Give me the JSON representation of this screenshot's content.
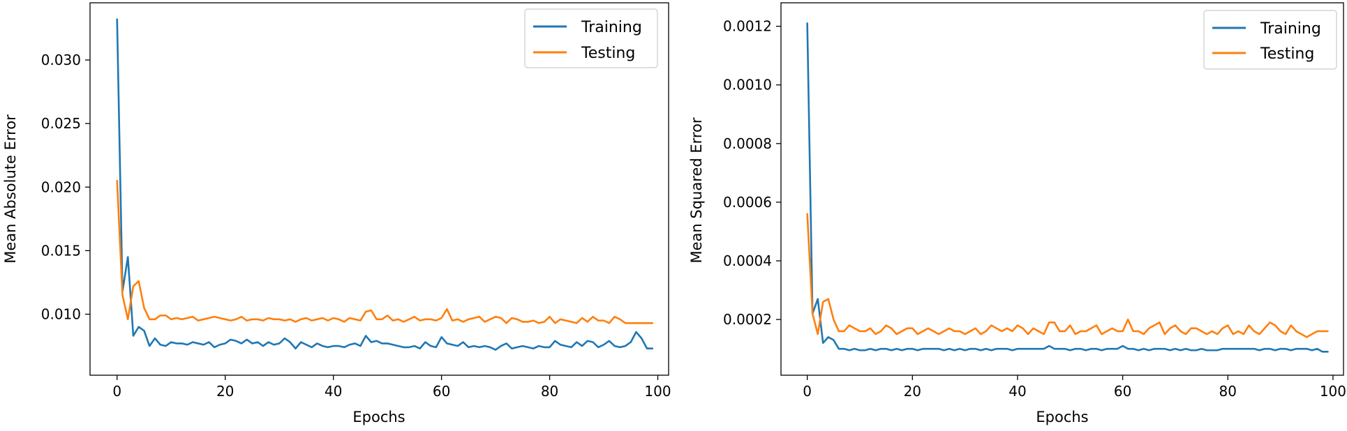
{
  "colors": {
    "training": "#1f77b4",
    "testing": "#ff7f0e"
  },
  "chart_data": [
    {
      "type": "line",
      "title": "",
      "xlabel": "Epochs",
      "ylabel": "Mean Absolute Error",
      "xlim": [
        -5,
        102
      ],
      "ylim": [
        0.0052,
        0.0345
      ],
      "xticks": [
        0,
        20,
        40,
        60,
        80,
        100
      ],
      "xtick_labels": [
        "0",
        "20",
        "40",
        "60",
        "80",
        "100"
      ],
      "yticks": [
        0.01,
        0.015,
        0.02,
        0.025,
        0.03
      ],
      "ytick_labels": [
        "0.010",
        "0.015",
        "0.020",
        "0.025",
        "0.030"
      ],
      "legend": {
        "position": "top-right",
        "entries": [
          "Training",
          "Testing"
        ]
      },
      "grid": false,
      "x": [
        0,
        1,
        2,
        3,
        4,
        5,
        6,
        7,
        8,
        9,
        10,
        11,
        12,
        13,
        14,
        15,
        16,
        17,
        18,
        19,
        20,
        21,
        22,
        23,
        24,
        25,
        26,
        27,
        28,
        29,
        30,
        31,
        32,
        33,
        34,
        35,
        36,
        37,
        38,
        39,
        40,
        41,
        42,
        43,
        44,
        45,
        46,
        47,
        48,
        49,
        50,
        51,
        52,
        53,
        54,
        55,
        56,
        57,
        58,
        59,
        60,
        61,
        62,
        63,
        64,
        65,
        66,
        67,
        68,
        69,
        70,
        71,
        72,
        73,
        74,
        75,
        76,
        77,
        78,
        79,
        80,
        81,
        82,
        83,
        84,
        85,
        86,
        87,
        88,
        89,
        90,
        91,
        92,
        93,
        94,
        95,
        96,
        97,
        98,
        99
      ],
      "series": [
        {
          "name": "Training",
          "values": [
            0.0332,
            0.0118,
            0.0145,
            0.0083,
            0.009,
            0.0087,
            0.0075,
            0.0081,
            0.0076,
            0.0075,
            0.0078,
            0.0077,
            0.0077,
            0.0076,
            0.0078,
            0.0077,
            0.0076,
            0.0078,
            0.0074,
            0.0076,
            0.0077,
            0.008,
            0.0079,
            0.0077,
            0.008,
            0.0077,
            0.0078,
            0.0075,
            0.0078,
            0.0076,
            0.0077,
            0.0081,
            0.0078,
            0.0073,
            0.0078,
            0.0076,
            0.0074,
            0.0077,
            0.0075,
            0.0074,
            0.0075,
            0.0075,
            0.0074,
            0.0076,
            0.0077,
            0.0075,
            0.0083,
            0.0078,
            0.0079,
            0.0077,
            0.0077,
            0.0076,
            0.0075,
            0.0074,
            0.0074,
            0.0075,
            0.0073,
            0.0078,
            0.0075,
            0.0074,
            0.0082,
            0.0077,
            0.0076,
            0.0075,
            0.0078,
            0.0074,
            0.0075,
            0.0074,
            0.0075,
            0.0074,
            0.0072,
            0.0075,
            0.0077,
            0.0073,
            0.0074,
            0.0075,
            0.0074,
            0.0073,
            0.0075,
            0.0074,
            0.0074,
            0.0079,
            0.0076,
            0.0075,
            0.0074,
            0.0078,
            0.0075,
            0.0079,
            0.0078,
            0.0074,
            0.0076,
            0.0079,
            0.0075,
            0.0074,
            0.0075,
            0.0078,
            0.0086,
            0.0081,
            0.0073,
            0.0073
          ]
        },
        {
          "name": "Testing",
          "values": [
            0.0205,
            0.0115,
            0.0096,
            0.0122,
            0.0126,
            0.0105,
            0.0096,
            0.0096,
            0.0099,
            0.0099,
            0.0096,
            0.0097,
            0.0096,
            0.0097,
            0.0098,
            0.0095,
            0.0096,
            0.0097,
            0.0098,
            0.0097,
            0.0096,
            0.0095,
            0.0096,
            0.0098,
            0.0095,
            0.0096,
            0.0096,
            0.0095,
            0.0097,
            0.0096,
            0.0096,
            0.0095,
            0.0096,
            0.0094,
            0.0096,
            0.0097,
            0.0095,
            0.0096,
            0.0097,
            0.0095,
            0.0097,
            0.0096,
            0.0094,
            0.0097,
            0.0096,
            0.0095,
            0.0102,
            0.0103,
            0.0096,
            0.0096,
            0.0099,
            0.0095,
            0.0096,
            0.0094,
            0.0096,
            0.0098,
            0.0095,
            0.0096,
            0.0096,
            0.0095,
            0.0097,
            0.0104,
            0.0095,
            0.0096,
            0.0094,
            0.0096,
            0.0097,
            0.0098,
            0.0094,
            0.0096,
            0.0098,
            0.0097,
            0.0093,
            0.0097,
            0.0096,
            0.0094,
            0.0094,
            0.0095,
            0.0093,
            0.0094,
            0.0098,
            0.0093,
            0.0096,
            0.0095,
            0.0094,
            0.0093,
            0.0097,
            0.0094,
            0.0098,
            0.0095,
            0.0095,
            0.0093,
            0.0098,
            0.0096,
            0.0093,
            0.0093,
            0.0093,
            0.0093,
            0.0093,
            0.0093
          ]
        }
      ]
    },
    {
      "type": "line",
      "title": "",
      "xlabel": "Epochs",
      "ylabel": "Mean Squared Error",
      "xlim": [
        -5,
        102
      ],
      "ylim": [
        1e-05,
        0.00128
      ],
      "xticks": [
        0,
        20,
        40,
        60,
        80,
        100
      ],
      "xtick_labels": [
        "0",
        "20",
        "40",
        "60",
        "80",
        "100"
      ],
      "yticks": [
        0.0002,
        0.0004,
        0.0006,
        0.0008,
        0.001,
        0.0012
      ],
      "ytick_labels": [
        "0.0002",
        "0.0004",
        "0.0006",
        "0.0008",
        "0.0010",
        "0.0012"
      ],
      "legend": {
        "position": "top-right",
        "entries": [
          "Training",
          "Testing"
        ]
      },
      "grid": false,
      "x": [
        0,
        1,
        2,
        3,
        4,
        5,
        6,
        7,
        8,
        9,
        10,
        11,
        12,
        13,
        14,
        15,
        16,
        17,
        18,
        19,
        20,
        21,
        22,
        23,
        24,
        25,
        26,
        27,
        28,
        29,
        30,
        31,
        32,
        33,
        34,
        35,
        36,
        37,
        38,
        39,
        40,
        41,
        42,
        43,
        44,
        45,
        46,
        47,
        48,
        49,
        50,
        51,
        52,
        53,
        54,
        55,
        56,
        57,
        58,
        59,
        60,
        61,
        62,
        63,
        64,
        65,
        66,
        67,
        68,
        69,
        70,
        71,
        72,
        73,
        74,
        75,
        76,
        77,
        78,
        79,
        80,
        81,
        82,
        83,
        84,
        85,
        86,
        87,
        88,
        89,
        90,
        91,
        92,
        93,
        94,
        95,
        96,
        97,
        98,
        99
      ],
      "series": [
        {
          "name": "Training",
          "values": [
            0.00121,
            0.00022,
            0.00027,
            0.00012,
            0.00014,
            0.00013,
            0.0001,
            0.0001,
            9.5e-05,
            0.0001,
            9.5e-05,
            9.5e-05,
            0.0001,
            9.5e-05,
            0.0001,
            0.0001,
            9.5e-05,
            0.0001,
            9.5e-05,
            0.0001,
            0.0001,
            9.5e-05,
            0.0001,
            0.0001,
            0.0001,
            0.0001,
            9.5e-05,
            0.0001,
            9.5e-05,
            0.0001,
            9.5e-05,
            0.0001,
            0.0001,
            9.5e-05,
            0.0001,
            9.5e-05,
            0.0001,
            0.0001,
            0.0001,
            9.5e-05,
            0.0001,
            0.0001,
            0.0001,
            0.0001,
            0.0001,
            0.0001,
            0.00011,
            0.0001,
            0.0001,
            0.0001,
            9.5e-05,
            0.0001,
            0.0001,
            9.5e-05,
            0.0001,
            0.0001,
            9.5e-05,
            0.0001,
            0.0001,
            0.0001,
            0.00011,
            0.0001,
            0.0001,
            9.5e-05,
            0.0001,
            9.5e-05,
            0.0001,
            0.0001,
            0.0001,
            9.5e-05,
            0.0001,
            9.5e-05,
            0.0001,
            9.5e-05,
            9.5e-05,
            0.0001,
            9.5e-05,
            9.5e-05,
            9.5e-05,
            0.0001,
            0.0001,
            0.0001,
            0.0001,
            0.0001,
            0.0001,
            0.0001,
            9.5e-05,
            0.0001,
            0.0001,
            9.5e-05,
            0.0001,
            0.0001,
            9.5e-05,
            0.0001,
            0.0001,
            0.0001,
            9.5e-05,
            0.0001,
            9e-05,
            9e-05
          ]
        },
        {
          "name": "Testing",
          "values": [
            0.00056,
            0.00022,
            0.00015,
            0.00026,
            0.00027,
            0.0002,
            0.00016,
            0.00016,
            0.00018,
            0.00017,
            0.00016,
            0.00016,
            0.00017,
            0.00015,
            0.00016,
            0.00018,
            0.00017,
            0.00015,
            0.00016,
            0.00017,
            0.00017,
            0.00015,
            0.00016,
            0.00017,
            0.00016,
            0.00015,
            0.00016,
            0.00017,
            0.00016,
            0.00016,
            0.00015,
            0.00016,
            0.00017,
            0.00015,
            0.00016,
            0.00018,
            0.00017,
            0.00016,
            0.00017,
            0.00016,
            0.00018,
            0.00017,
            0.00015,
            0.00017,
            0.00016,
            0.00015,
            0.00019,
            0.00019,
            0.00016,
            0.00016,
            0.00018,
            0.00015,
            0.00016,
            0.00016,
            0.00017,
            0.00018,
            0.00015,
            0.00016,
            0.00017,
            0.00016,
            0.00016,
            0.0002,
            0.00016,
            0.00016,
            0.00015,
            0.00017,
            0.00018,
            0.00019,
            0.00015,
            0.00017,
            0.00018,
            0.00016,
            0.00015,
            0.00017,
            0.00017,
            0.00016,
            0.00015,
            0.00016,
            0.00015,
            0.00017,
            0.00018,
            0.00015,
            0.00016,
            0.00015,
            0.00018,
            0.00016,
            0.00015,
            0.00017,
            0.00019,
            0.00018,
            0.00016,
            0.00015,
            0.00018,
            0.00016,
            0.00015,
            0.00014,
            0.00015,
            0.00016,
            0.00016,
            0.00016
          ]
        }
      ]
    }
  ]
}
